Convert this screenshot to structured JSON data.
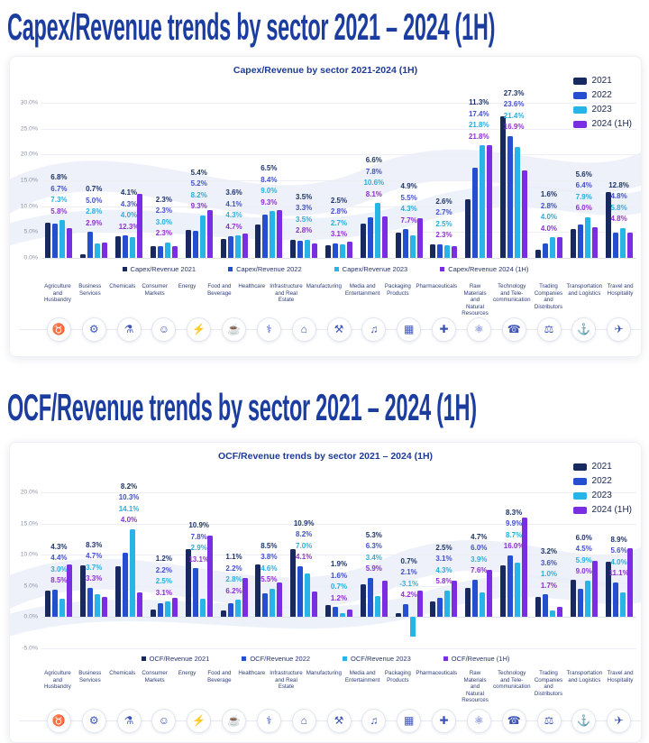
{
  "page": {
    "title_capex": "Capex/Revenue trends by sector 2021 – 2024 (1H)",
    "title_ocf": "OCF/Revenue trends by sector 2021 – 2024 (1H)"
  },
  "series_colors": [
    "#17295f",
    "#2450d0",
    "#29b4e8",
    "#7a2ee2"
  ],
  "label_colors": [
    "#1d3468",
    "#4150ca",
    "#29aede",
    "#8e2fd2"
  ],
  "sectors": [
    "Agriculture and Husbandry",
    "Business Services",
    "Chemicals",
    "Consumer Markets",
    "Energy",
    "Food and Beverage",
    "Healthcare",
    "Infrastructure and Real Estate",
    "Manufacturing",
    "Media and Entertainment",
    "Packaging Products",
    "Pharmaceuticals",
    "Raw Materials and Natural Resources",
    "Technology and Tele-communication",
    "Trading Companies and Distributors",
    "Transportation and Logistics",
    "Travel and Hospitality"
  ],
  "sector_icons": [
    {
      "name": "bull-icon",
      "glyph": "♉"
    },
    {
      "name": "gears-icon",
      "glyph": "⚙"
    },
    {
      "name": "flask-icon",
      "glyph": "⚗"
    },
    {
      "name": "person-icon",
      "glyph": "☺"
    },
    {
      "name": "lightning-icon",
      "glyph": "⚡"
    },
    {
      "name": "food-plate-icon",
      "glyph": "☕"
    },
    {
      "name": "caduceus-icon",
      "glyph": "⚕"
    },
    {
      "name": "building-icon",
      "glyph": "⌂"
    },
    {
      "name": "hammer-pick-icon",
      "glyph": "⚒"
    },
    {
      "name": "media-icon",
      "glyph": "♫"
    },
    {
      "name": "package-icon",
      "glyph": "▦"
    },
    {
      "name": "medical-cross-icon",
      "glyph": "✚"
    },
    {
      "name": "atom-icon",
      "glyph": "⚛"
    },
    {
      "name": "phone-icon",
      "glyph": "☎"
    },
    {
      "name": "scales-icon",
      "glyph": "⚖"
    },
    {
      "name": "truck-icon",
      "glyph": "⚓"
    },
    {
      "name": "airplane-icon",
      "glyph": "✈"
    }
  ],
  "chart_data": [
    {
      "type": "bar",
      "title": "Capex/Revenue by sector 2021-2024 (1H)",
      "legend": [
        "2021",
        "2022",
        "2023",
        "2024 (1H)"
      ],
      "bottom_legend": [
        "Capex/Revenue 2021",
        "Capex/Revenue 2022",
        "Capex/Revenue 2023",
        "Capex/Revenue 2024 (1H)"
      ],
      "legend_position": "top-right",
      "grid": true,
      "ylim": [
        0,
        30
      ],
      "ytick_step": 5,
      "yticks": [
        "0.0%",
        "5.0%",
        "10.0%",
        "15.0%",
        "20.0%",
        "25.0%",
        "30.0%"
      ],
      "categories": [
        "Agriculture and Husbandry",
        "Business Services",
        "Chemicals",
        "Consumer Markets",
        "Energy",
        "Food and Beverage",
        "Healthcare",
        "Infrastructure and Real Estate",
        "Manufacturing",
        "Media and Entertainment",
        "Packaging Products",
        "Pharmaceuticals",
        "Raw Materials and Natural Resources",
        "Technology and Tele-communication",
        "Trading Companies and Distributors",
        "Transportation and Logistics",
        "Travel and Hospitality"
      ],
      "series": [
        {
          "name": "2021",
          "values": [
            6.8,
            0.7,
            4.1,
            2.3,
            5.4,
            3.6,
            6.5,
            3.5,
            2.5,
            6.6,
            4.9,
            2.6,
            11.3,
            27.3,
            1.6,
            5.6,
            12.8
          ]
        },
        {
          "name": "2022",
          "values": [
            6.7,
            5.0,
            4.3,
            2.3,
            5.2,
            4.1,
            8.4,
            3.3,
            2.8,
            7.8,
            5.5,
            2.7,
            17.4,
            23.6,
            2.8,
            6.4,
            4.8
          ]
        },
        {
          "name": "2023",
          "values": [
            7.3,
            2.8,
            4.0,
            3.0,
            8.2,
            4.3,
            9.0,
            3.5,
            2.7,
            10.6,
            4.3,
            2.5,
            21.8,
            21.4,
            4.0,
            7.9,
            5.8
          ]
        },
        {
          "name": "2024 (1H)",
          "values": [
            5.8,
            2.9,
            12.3,
            2.3,
            9.3,
            4.7,
            9.3,
            2.8,
            3.1,
            8.1,
            7.7,
            2.3,
            21.8,
            16.9,
            4.0,
            6.0,
            4.8
          ]
        }
      ]
    },
    {
      "type": "bar",
      "title": "OCF/Revenue trends by sector 2021 – 2024 (1H)",
      "legend": [
        "2021",
        "2022",
        "2023",
        "2024 (1H)"
      ],
      "bottom_legend": [
        "OCF/Revenue 2021",
        "OCF/Revenue 2022",
        "OCF/Revenue 2023",
        "OCF/Revenue (1H)"
      ],
      "legend_position": "top-right",
      "grid": true,
      "ylim": [
        -5,
        20
      ],
      "ytick_step": 5,
      "yticks": [
        "-5.0%",
        "0.0%",
        "5.0%",
        "10.0%",
        "15.0%",
        "20.0%"
      ],
      "categories": [
        "Agriculture and Husbandry",
        "Business Services",
        "Chemicals",
        "Consumer Markets",
        "Energy",
        "Food and Beverage",
        "Healthcare",
        "Infrastructure and Real Estate",
        "Manufacturing",
        "Media and Entertainment",
        "Packaging Products",
        "Pharmaceuticals",
        "Raw Materials and Natural Resources",
        "Technology and Tele-communication",
        "Trading Companies and Distributors",
        "Transportation and Logistics",
        "Travel and Hospitality"
      ],
      "series": [
        {
          "name": "2021",
          "values": [
            4.3,
            8.3,
            8.2,
            1.2,
            10.9,
            1.1,
            8.5,
            10.9,
            1.9,
            5.3,
            0.7,
            2.5,
            4.7,
            8.3,
            3.2,
            6.0,
            8.9
          ]
        },
        {
          "name": "2022",
          "values": [
            4.4,
            4.7,
            10.3,
            2.2,
            7.8,
            2.2,
            3.8,
            8.2,
            1.6,
            6.3,
            2.1,
            3.1,
            6.0,
            9.9,
            3.6,
            4.5,
            5.6
          ]
        },
        {
          "name": "2023",
          "values": [
            3.0,
            3.7,
            14.1,
            2.5,
            2.9,
            2.8,
            4.6,
            7.0,
            0.7,
            3.4,
            -3.1,
            4.3,
            3.9,
            8.7,
            1.0,
            5.9,
            4.0
          ]
        },
        {
          "name": "2024 (1H)",
          "values": [
            8.5,
            3.3,
            4.0,
            3.1,
            13.1,
            6.2,
            5.5,
            4.1,
            1.2,
            5.9,
            4.2,
            5.8,
            7.6,
            16.0,
            1.7,
            9.0,
            11.1
          ]
        }
      ]
    }
  ]
}
